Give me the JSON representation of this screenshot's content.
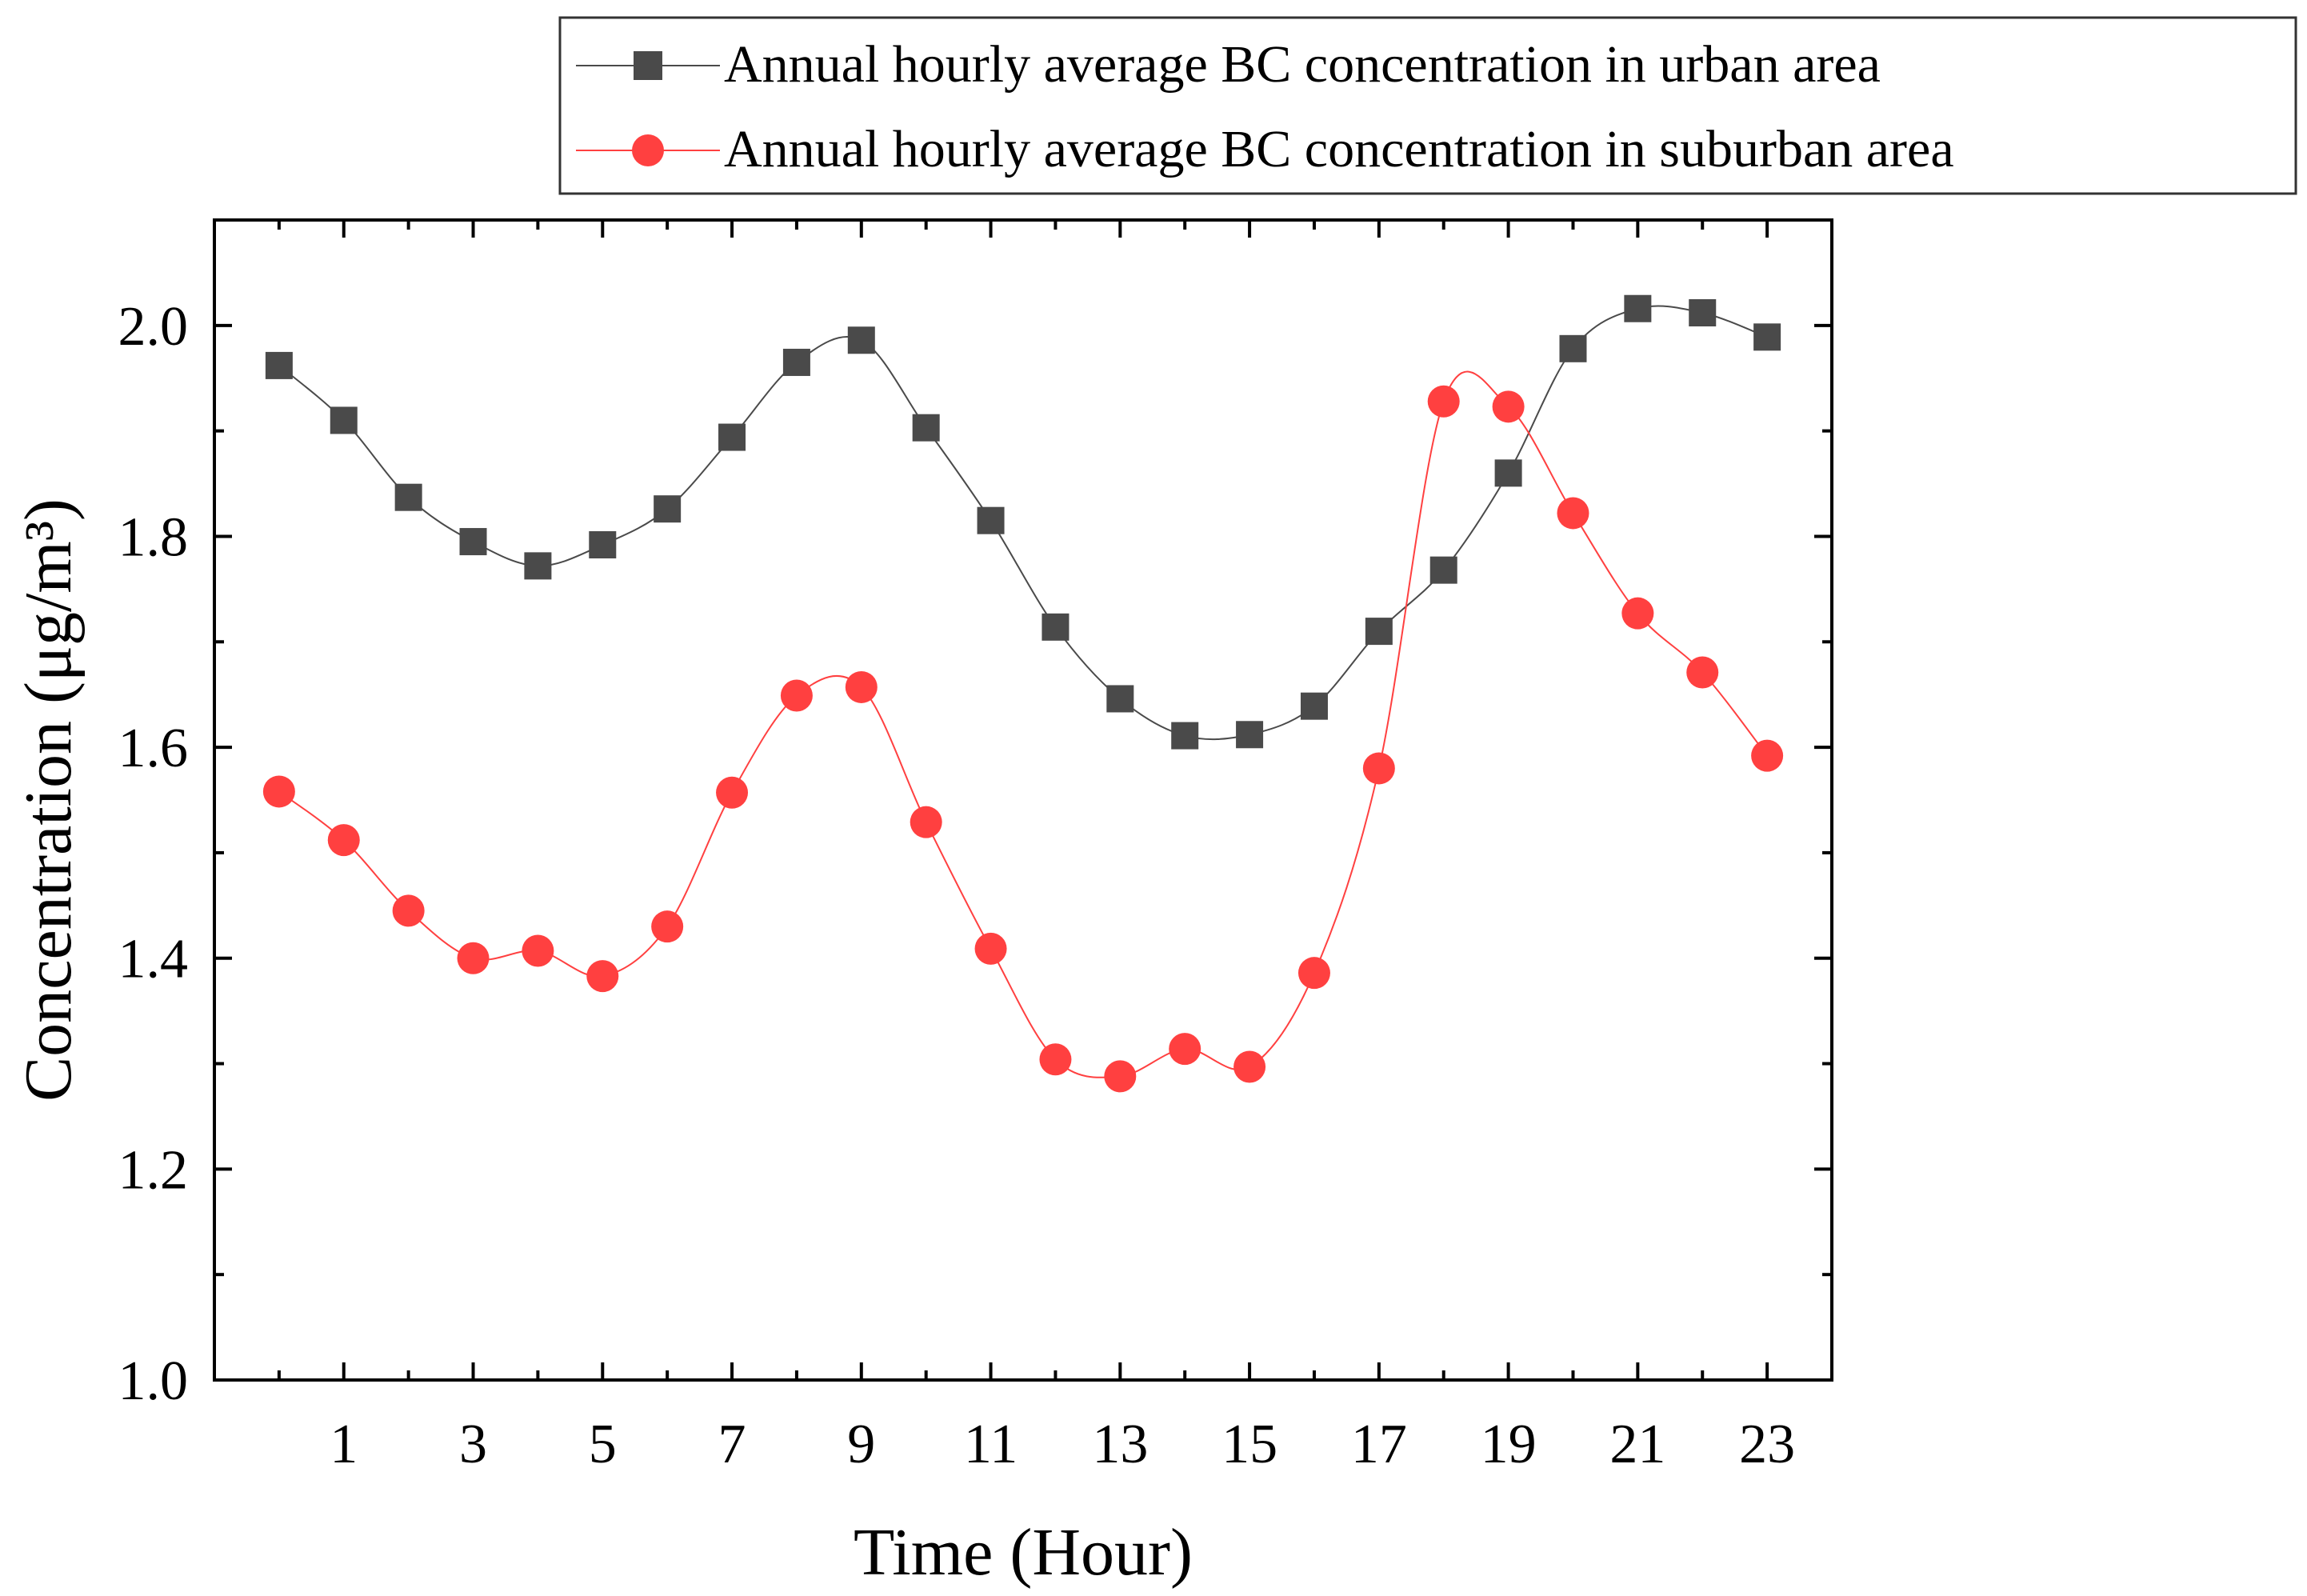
{
  "chart_data": {
    "type": "line",
    "xlabel": "Time (Hour)",
    "ylabel": "Concentration (μg/m³)",
    "xlim": [
      -1,
      24
    ],
    "ylim": [
      1.0,
      2.1
    ],
    "x_ticks": [
      1,
      3,
      5,
      7,
      9,
      11,
      13,
      15,
      17,
      19,
      21,
      23
    ],
    "y_ticks": [
      1.0,
      1.2,
      1.4,
      1.6,
      1.8,
      2.0
    ],
    "y_tick_labels": [
      "1.0",
      "1.2",
      "1.4",
      "1.6",
      "1.8",
      "2.0"
    ],
    "grid": false,
    "legend_position": "top-right, outside plot",
    "x": [
      0,
      1,
      2,
      3,
      4,
      5,
      6,
      7,
      8,
      9,
      10,
      11,
      12,
      13,
      14,
      15,
      16,
      17,
      18,
      19,
      20,
      21,
      22,
      23
    ],
    "series": [
      {
        "name": "Annual hourly average BC concentration in urban area",
        "color": "#4a4a4a",
        "marker": "square",
        "values": [
          1.962,
          1.91,
          1.837,
          1.795,
          1.772,
          1.792,
          1.826,
          1.894,
          1.965,
          1.986,
          1.903,
          1.815,
          1.714,
          1.646,
          1.611,
          1.612,
          1.639,
          1.71,
          1.768,
          1.86,
          1.978,
          2.016,
          2.012,
          1.989
        ]
      },
      {
        "name": "Annual hourly average BC concentration in suburban area",
        "color": "#ff4040",
        "marker": "circle",
        "values": [
          1.558,
          1.512,
          1.445,
          1.4,
          1.407,
          1.383,
          1.43,
          1.557,
          1.649,
          1.657,
          1.529,
          1.409,
          1.304,
          1.288,
          1.314,
          1.297,
          1.386,
          1.58,
          1.928,
          1.923,
          1.822,
          1.727,
          1.671,
          1.592
        ]
      }
    ]
  }
}
